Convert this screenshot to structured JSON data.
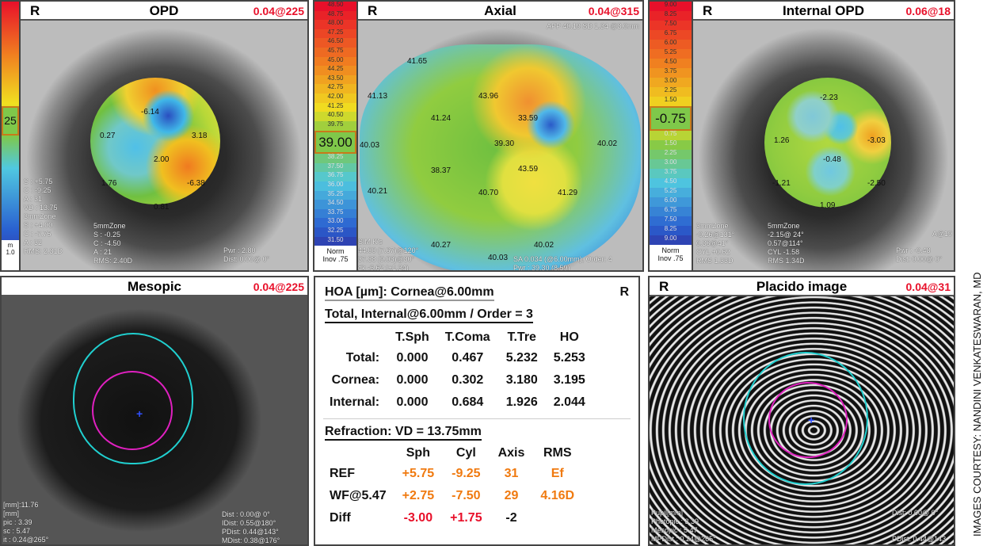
{
  "panels": {
    "opd": {
      "side": "R",
      "title": "OPD",
      "value": "0.04@225",
      "scale_highlight": "25",
      "map_labels": [
        "-6.14",
        "0.27",
        "3.18",
        "2.00",
        "1.76",
        "-6.38",
        "0.81"
      ],
      "overlay_left": "S : +5.75\nC : -9.25\nA : 31\nVD : 13.75\n3mmZone\nS : +4.00\nC : -7.75\nA : 32\nRMS: 2.31D",
      "overlay_mid": "5mmZone\nS : -0.25\nC : -4.50\nA : 21\nRMS: 2.40D",
      "overlay_right": "Pwr : 2.80\nDist: 0.00@ 0°",
      "scale_norm": "m\n1.0"
    },
    "axial": {
      "side": "R",
      "title": "Axial",
      "value": "0.04@315",
      "top_note": "APP 40.19 SD 1.34 @3.0mm",
      "scale": [
        "48.50",
        "48.75",
        "48.00",
        "47.25",
        "46.50",
        "45.75",
        "45.00",
        "44.25",
        "43.50",
        "42.75",
        "42.00",
        "41.25",
        "40.50",
        "39.75"
      ],
      "scale_highlight": "39.00",
      "scale_low": [
        "38.25",
        "37.50",
        "36.75",
        "36.00",
        "35.25",
        "34.50",
        "33.75",
        "33.00",
        "32.25",
        "31.50"
      ],
      "scale_norm": "Norm\nInov .75",
      "map_labels": [
        "41.65",
        "41.13",
        "43.96",
        "41.24",
        "33.59",
        "40.03",
        "39.30",
        "40.02",
        "38.37",
        "43.59",
        "40.21",
        "40.70",
        "41.29",
        "40.27",
        "40.02",
        "40.03"
      ],
      "overlay_left": "SIM K's\n44.00 (7.67)@120°\n37.38 (9.03)@30°\ndk -6.62 (+1.34)",
      "overlay_right": "SA 0.034 (@6.00mm), Order: 4\nPwr : 39.30 (8.59)\nDist: 0.00@ 0°"
    },
    "internal_opd": {
      "side": "R",
      "title": "Internal OPD",
      "value": "0.06@18",
      "scale": [
        "9.00",
        "8.25",
        "7.50",
        "6.75",
        "6.00",
        "5.25",
        "4.50",
        "3.75",
        "3.00",
        "2.25",
        "1.50"
      ],
      "scale_highlight": "-0.75",
      "scale_low": [
        "0.75",
        "1.50",
        "2.25",
        "3.00",
        "3.75",
        "4.50",
        "5.25",
        "6.00",
        "6.75",
        "7.50",
        "8.25",
        "9.00"
      ],
      "scale_norm": "Norm\nInov .75",
      "map_labels": [
        "-2.23",
        "1.26",
        "-3.03",
        "-0.48",
        "-1.21",
        "-2.50",
        "1.09"
      ],
      "overlay_left": "3mmZone\n-0.26@131°\n0.36@41°\nCYL +0.62\nRMS 1.33D",
      "overlay_mid": "5mmZone\n-2.15@ 24°\n0.57@114°\nCYL -1.58\nRMS 1.34D",
      "overlay_right": "Pwr : -0.48\nDist: 0.00@ 0°",
      "overlay_axis": "A@19"
    },
    "mesopic": {
      "title": "Mesopic",
      "value": "0.04@225",
      "overlay_left": "[mm]:11.76\n[mm]\npic : 3.39\nsc : 5.47\nit : 0.24@265°",
      "overlay_right": "Dist : 0.00@ 0°\nIDist: 0.55@180°\nPDist: 0.44@143°\nMDist: 0.38@176°"
    },
    "placido": {
      "side": "R",
      "title": "Placido image",
      "value": "0.04@31",
      "overlay_left": "Pupil[mm]\nPhotopic : 3.39\nMesopic : 5.47\nMPDist : 0.24@265°",
      "overlay_right": "Dist: 0.00@ 0°\n\n\nPDist: 0.44@143\nMDist: 0.38@176"
    }
  },
  "hoa": {
    "title1": "HOA [µm]: Cornea@6.00mm",
    "side": "R",
    "title2": "Total, Internal@6.00mm / Order = 3",
    "columns": [
      "",
      "T.Sph",
      "T.Coma",
      "T.Tre",
      "HO"
    ],
    "rows": [
      [
        "Total:",
        "0.000",
        "0.467",
        "5.232",
        "5.253"
      ],
      [
        "Cornea:",
        "0.000",
        "0.302",
        "3.180",
        "3.195"
      ],
      [
        "Internal:",
        "0.000",
        "0.684",
        "1.926",
        "2.044"
      ]
    ],
    "refraction_title": "Refraction: VD = 13.75mm",
    "ref_columns": [
      "",
      "Sph",
      "Cyl",
      "Axis",
      "RMS"
    ],
    "ref_rows": [
      [
        "REF",
        "+5.75",
        "-9.25",
        "31",
        "Ef"
      ],
      [
        "WF@5.47",
        "+2.75",
        "-7.50",
        "29",
        "4.16D"
      ],
      [
        "Diff",
        "-3.00",
        "+1.75",
        "-2",
        ""
      ]
    ],
    "colors": {
      "orange": "#f07a10",
      "red": "#e8102a"
    }
  },
  "credit": "IMAGES COURTESY: NANDINI VENKATESWARAN, MD"
}
